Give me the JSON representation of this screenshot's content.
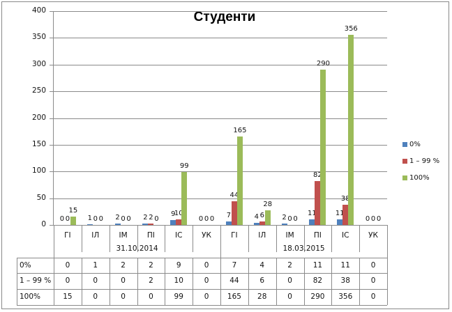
{
  "chart_data": {
    "type": "bar",
    "title": "Студенти",
    "xlabel": "",
    "ylabel": "",
    "ylim": [
      0,
      400
    ],
    "yticks": [
      0,
      50,
      100,
      150,
      200,
      250,
      300,
      350,
      400
    ],
    "grid": true,
    "legend_position": "right",
    "groups": [
      {
        "label": "31.10.2014",
        "categories": [
          "ГІ",
          "ІЛ",
          "ІМ",
          "ПІ",
          "ІС",
          "УК"
        ]
      },
      {
        "label": "18.03.2015",
        "categories": [
          "ГІ",
          "ІЛ",
          "ІМ",
          "ПІ",
          "ІС",
          "УК"
        ]
      }
    ],
    "categories": [
      "ГІ",
      "ІЛ",
      "ІМ",
      "ПІ",
      "ІС",
      "УК",
      "ГІ",
      "ІЛ",
      "ІМ",
      "ПІ",
      "ІС",
      "УК"
    ],
    "series": [
      {
        "name": "0%",
        "color": "#4f81bd",
        "values": [
          0,
          1,
          2,
          2,
          9,
          0,
          7,
          4,
          2,
          11,
          11,
          0
        ]
      },
      {
        "name": "1 – 99 %",
        "color": "#c0504d",
        "values": [
          0,
          0,
          0,
          2,
          10,
          0,
          44,
          6,
          0,
          82,
          38,
          0
        ]
      },
      {
        "name": "100%",
        "color": "#9bbb59",
        "values": [
          15,
          0,
          0,
          0,
          99,
          0,
          165,
          28,
          0,
          290,
          356,
          0
        ]
      }
    ],
    "data_table": true
  },
  "title": "Студенти",
  "yaxis": {
    "ticks": [
      "400",
      "350",
      "300",
      "250",
      "200",
      "150",
      "100",
      "50",
      "0"
    ]
  },
  "legend": {
    "items": [
      {
        "label": "0%",
        "color": "#4f81bd"
      },
      {
        "label": "1 – 99 %",
        "color": "#c0504d"
      },
      {
        "label": "100%",
        "color": "#9bbb59"
      }
    ]
  },
  "table": {
    "dates": [
      "31.10.2014",
      "18.03.2015"
    ],
    "row_headers": [
      "0%",
      "1 – 99 %",
      "100%"
    ]
  }
}
